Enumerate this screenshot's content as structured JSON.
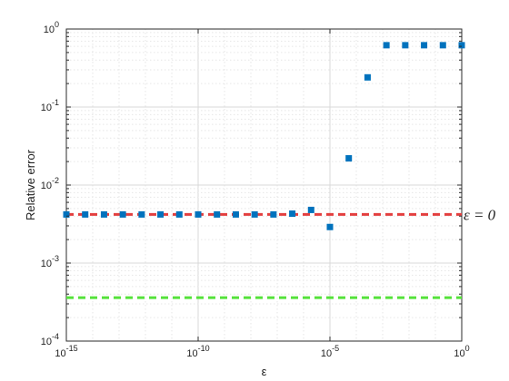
{
  "chart_data": {
    "type": "scatter",
    "xlabel": "ε",
    "ylabel": "Relative error",
    "x_scale": "log",
    "y_scale": "log",
    "xlim": [
      1e-15,
      1
    ],
    "ylim": [
      0.0001,
      1
    ],
    "grid": true,
    "x_tick_labels": [
      {
        "value": 1e-15,
        "label": "10",
        "exp": "-15"
      },
      {
        "value": 1e-10,
        "label": "10",
        "exp": "-10"
      },
      {
        "value": 1e-05,
        "label": "10",
        "exp": "-5"
      },
      {
        "value": 1,
        "label": "10",
        "exp": "0"
      }
    ],
    "y_tick_labels": [
      {
        "value": 0.0001,
        "label": "10",
        "exp": "-4"
      },
      {
        "value": 0.001,
        "label": "10",
        "exp": "-3"
      },
      {
        "value": 0.01,
        "label": "10",
        "exp": "-2"
      },
      {
        "value": 0.1,
        "label": "10",
        "exp": "-1"
      },
      {
        "value": 1,
        "label": "10",
        "exp": "0"
      }
    ],
    "series": [
      {
        "color": "#0072BD",
        "marker": "square",
        "x": [
          1e-15,
          5.1795e-15,
          2.6827e-14,
          1.3895e-13,
          7.1969e-13,
          3.7276e-12,
          1.9307e-11,
          1e-10,
          5.1795e-10,
          2.6827e-09,
          1.3895e-08,
          7.1969e-08,
          3.7276e-07,
          1.9307e-06,
          1e-05,
          5.1795e-05,
          0.00026827,
          0.0013895,
          0.0071969,
          0.037276,
          0.19307,
          1.0
        ],
        "y": [
          0.0042,
          0.0042,
          0.0042,
          0.0042,
          0.0042,
          0.0042,
          0.0042,
          0.0042,
          0.0042,
          0.0042,
          0.0042,
          0.0042,
          0.0043,
          0.0048,
          0.0029,
          0.022,
          0.24,
          0.62,
          0.62,
          0.62,
          0.62,
          0.62
        ]
      }
    ],
    "reference_lines": [
      {
        "y": 0.0042,
        "color": "#E33F3F",
        "style": "dashed",
        "label": "ε = 0"
      },
      {
        "y": 0.00036,
        "color": "#55E23A",
        "style": "dashed"
      }
    ]
  }
}
